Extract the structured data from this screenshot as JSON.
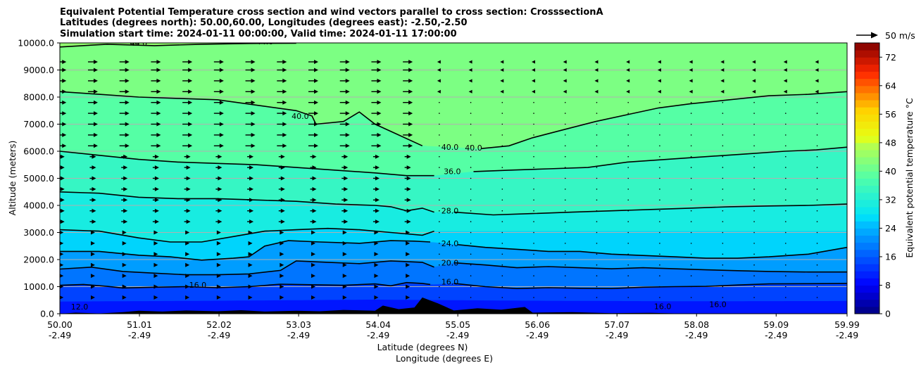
{
  "chart_data": {
    "type": "heatmap",
    "title_lines": [
      "Equivalent Potential Temperature cross section and wind vectors parallel to cross section: CrosssectionA",
      "Latitudes (degrees north): 50.00,60.00, Longitudes (degrees east): -2.50,-2.50",
      "Simulation start time: 2024-01-11 00:00:00, Valid time: 2024-01-11 17:00:00"
    ],
    "xlabel_1": "Latitude (degrees N)",
    "xlabel_2": "Longitude (degrees E)",
    "ylabel": "Altitude (meters)",
    "x_ticks_lat": [
      "50.00",
      "51.01",
      "52.02",
      "53.03",
      "54.04",
      "55.05",
      "56.06",
      "57.07",
      "58.08",
      "59.09",
      "59.99"
    ],
    "x_ticks_lon": [
      "-2.49",
      "-2.49",
      "-2.49",
      "-2.49",
      "-2.49",
      "-2.49",
      "-2.49",
      "-2.49",
      "-2.49",
      "-2.49",
      "-2.49"
    ],
    "x_range": [
      50.0,
      59.99
    ],
    "y_ticks": [
      "0.0",
      "1000.0",
      "2000.0",
      "3000.0",
      "4000.0",
      "5000.0",
      "6000.0",
      "7000.0",
      "8000.0",
      "9000.0",
      "10000.0"
    ],
    "y_range": [
      0,
      10000
    ],
    "grid": "horizontal",
    "colorbar": {
      "label": "Equivalent potential temperature $^\\circ$C",
      "label_display": "Equivalent potential temperature °C",
      "range": [
        0,
        76
      ],
      "ticks": [
        "0",
        "8",
        "16",
        "24",
        "32",
        "40",
        "48",
        "56",
        "64",
        "72"
      ]
    },
    "quiver_key": "50 m/s",
    "contour_labels": [
      {
        "text": "12.0",
        "lat": 50.25,
        "alt": 150
      },
      {
        "text": "16.0",
        "lat": 51.75,
        "alt": 960
      },
      {
        "text": "16.0",
        "lat": 54.95,
        "alt": 1080
      },
      {
        "text": "16.0",
        "lat": 57.65,
        "alt": 170
      },
      {
        "text": "16.0",
        "lat": 58.35,
        "alt": 250
      },
      {
        "text": "20.0",
        "lat": 54.95,
        "alt": 1780
      },
      {
        "text": "24.0",
        "lat": 54.95,
        "alt": 2500
      },
      {
        "text": "28.0",
        "lat": 54.95,
        "alt": 3700
      },
      {
        "text": "36.0",
        "lat": 54.98,
        "alt": 5150
      },
      {
        "text": "40.0",
        "lat": 54.95,
        "alt": 6050
      },
      {
        "text": "40.0",
        "lat": 55.25,
        "alt": 6030
      },
      {
        "text": "40.0",
        "lat": 53.05,
        "alt": 7200
      },
      {
        "text": "44.0",
        "lat": 51.0,
        "alt": 9900
      },
      {
        "text": "44.0",
        "lat": 52.6,
        "alt": 9950
      }
    ],
    "contour_levels": [
      12,
      16,
      20,
      24,
      28,
      32,
      36,
      40,
      44
    ],
    "contours": [
      {
        "level": 16,
        "points": [
          [
            50.0,
            1050
          ],
          [
            50.3,
            1080
          ],
          [
            50.6,
            1010
          ],
          [
            50.8,
            950
          ],
          [
            51.2,
            980
          ],
          [
            51.6,
            1000
          ],
          [
            52.0,
            960
          ],
          [
            52.4,
            1000
          ],
          [
            52.8,
            1090
          ],
          [
            53.2,
            1070
          ],
          [
            53.6,
            1050
          ],
          [
            54.0,
            1100
          ],
          [
            54.2,
            1030
          ],
          [
            54.4,
            1150
          ],
          [
            54.6,
            1120
          ],
          [
            54.7,
            1080
          ]
        ]
      },
      {
        "level": 16,
        "points": [
          [
            55.0,
            1120
          ],
          [
            55.4,
            1000
          ],
          [
            55.8,
            930
          ],
          [
            56.2,
            960
          ],
          [
            56.6,
            940
          ],
          [
            57.0,
            930
          ],
          [
            57.4,
            980
          ],
          [
            57.8,
            1000
          ],
          [
            58.2,
            1010
          ],
          [
            58.6,
            1060
          ],
          [
            59.0,
            1100
          ],
          [
            59.5,
            1110
          ],
          [
            59.99,
            1120
          ]
        ]
      },
      {
        "level": 20,
        "points": [
          [
            50.0,
            1650
          ],
          [
            50.4,
            1720
          ],
          [
            50.8,
            1560
          ],
          [
            51.2,
            1500
          ],
          [
            51.6,
            1440
          ],
          [
            52.0,
            1440
          ],
          [
            52.4,
            1470
          ],
          [
            52.8,
            1600
          ],
          [
            53.0,
            1950
          ],
          [
            53.4,
            1900
          ],
          [
            53.8,
            1850
          ],
          [
            54.2,
            1950
          ],
          [
            54.6,
            1900
          ],
          [
            54.75,
            1720
          ]
        ]
      },
      {
        "level": 20,
        "points": [
          [
            55.0,
            1880
          ],
          [
            55.4,
            1800
          ],
          [
            55.8,
            1700
          ],
          [
            56.2,
            1740
          ],
          [
            56.6,
            1700
          ],
          [
            57.0,
            1660
          ],
          [
            57.4,
            1700
          ],
          [
            57.8,
            1660
          ],
          [
            58.2,
            1620
          ],
          [
            58.6,
            1590
          ],
          [
            59.0,
            1560
          ],
          [
            59.5,
            1540
          ],
          [
            59.99,
            1540
          ]
        ]
      },
      {
        "level": 24,
        "points": [
          [
            50.0,
            2300
          ],
          [
            50.5,
            2300
          ],
          [
            51.0,
            2160
          ],
          [
            51.4,
            2100
          ],
          [
            51.8,
            1980
          ],
          [
            52.2,
            2050
          ],
          [
            52.4,
            2100
          ],
          [
            52.6,
            2500
          ],
          [
            52.9,
            2700
          ],
          [
            53.3,
            2650
          ],
          [
            53.8,
            2600
          ],
          [
            54.2,
            2700
          ],
          [
            54.5,
            2680
          ],
          [
            54.7,
            2650
          ]
        ]
      },
      {
        "level": 24,
        "points": [
          [
            55.05,
            2550
          ],
          [
            55.4,
            2450
          ],
          [
            55.8,
            2380
          ],
          [
            56.2,
            2300
          ],
          [
            56.6,
            2300
          ],
          [
            57.0,
            2200
          ],
          [
            57.4,
            2150
          ],
          [
            57.8,
            2100
          ],
          [
            58.2,
            2050
          ],
          [
            58.6,
            2050
          ],
          [
            59.0,
            2100
          ],
          [
            59.5,
            2200
          ],
          [
            59.99,
            2450
          ]
        ]
      },
      {
        "level": 28,
        "points": [
          [
            50.0,
            3100
          ],
          [
            50.5,
            3050
          ],
          [
            51.0,
            2800
          ],
          [
            51.4,
            2650
          ],
          [
            51.8,
            2650
          ],
          [
            52.2,
            2850
          ],
          [
            52.6,
            3050
          ],
          [
            53.0,
            3100
          ],
          [
            53.4,
            3150
          ],
          [
            53.8,
            3100
          ],
          [
            54.2,
            3000
          ],
          [
            54.6,
            2900
          ],
          [
            54.75,
            3050
          ]
        ]
      },
      {
        "level": 32,
        "points": [
          [
            50.0,
            4500
          ],
          [
            50.5,
            4450
          ],
          [
            51.0,
            4300
          ],
          [
            51.5,
            4250
          ],
          [
            52.0,
            4250
          ],
          [
            52.5,
            4200
          ],
          [
            53.0,
            4150
          ],
          [
            53.5,
            4050
          ],
          [
            54.0,
            4000
          ],
          [
            54.2,
            3950
          ],
          [
            54.4,
            3800
          ],
          [
            54.6,
            3900
          ],
          [
            54.75,
            3750
          ]
        ]
      },
      {
        "level": 32,
        "points": [
          [
            55.0,
            3750
          ],
          [
            55.5,
            3650
          ],
          [
            56.0,
            3700
          ],
          [
            56.5,
            3750
          ],
          [
            57.0,
            3800
          ],
          [
            57.5,
            3850
          ],
          [
            58.0,
            3900
          ],
          [
            58.5,
            3950
          ],
          [
            59.0,
            3980
          ],
          [
            59.5,
            4000
          ],
          [
            59.99,
            4050
          ]
        ]
      },
      {
        "level": 36,
        "points": [
          [
            50.0,
            6000
          ],
          [
            50.5,
            5850
          ],
          [
            51.0,
            5700
          ],
          [
            51.5,
            5600
          ],
          [
            52.0,
            5550
          ],
          [
            52.5,
            5500
          ],
          [
            53.0,
            5400
          ],
          [
            53.5,
            5300
          ],
          [
            54.0,
            5200
          ],
          [
            54.4,
            5100
          ],
          [
            54.75,
            5100
          ]
        ]
      },
      {
        "level": 36,
        "points": [
          [
            55.25,
            5250
          ],
          [
            55.7,
            5300
          ],
          [
            56.2,
            5350
          ],
          [
            56.7,
            5400
          ],
          [
            57.2,
            5600
          ],
          [
            57.7,
            5700
          ],
          [
            58.2,
            5800
          ],
          [
            58.7,
            5900
          ],
          [
            59.2,
            6000
          ],
          [
            59.6,
            6050
          ],
          [
            59.99,
            6150
          ]
        ]
      },
      {
        "level": 40,
        "points": [
          [
            53.25,
            7000
          ],
          [
            53.6,
            7100
          ],
          [
            53.8,
            7450
          ],
          [
            54.0,
            7000
          ],
          [
            54.3,
            6600
          ],
          [
            54.6,
            6200
          ]
        ]
      },
      {
        "level": 40,
        "points": [
          [
            55.35,
            6100
          ],
          [
            55.7,
            6200
          ],
          [
            56.0,
            6500
          ],
          [
            56.4,
            6800
          ],
          [
            56.8,
            7100
          ],
          [
            57.2,
            7350
          ],
          [
            57.6,
            7600
          ],
          [
            58.0,
            7750
          ],
          [
            58.5,
            7900
          ],
          [
            59.0,
            8050
          ],
          [
            59.5,
            8100
          ],
          [
            59.99,
            8200
          ]
        ]
      },
      {
        "level": 40,
        "points": [
          [
            50.0,
            8200
          ],
          [
            50.5,
            8100
          ],
          [
            51.0,
            8000
          ],
          [
            51.5,
            7950
          ],
          [
            52.0,
            7900
          ],
          [
            52.5,
            7700
          ],
          [
            53.0,
            7500
          ],
          [
            53.2,
            7300
          ],
          [
            53.25,
            7000
          ]
        ]
      },
      {
        "level": 44,
        "points": [
          [
            50.0,
            9850
          ],
          [
            50.6,
            9950
          ],
          [
            51.2,
            9900
          ],
          [
            51.8,
            9950
          ],
          [
            52.4,
            9980
          ],
          [
            53.0,
            9990
          ]
        ]
      }
    ],
    "wind_rows_alt": [
      9300,
      9000,
      8600,
      8200,
      7800,
      7400,
      7000,
      6600,
      6200,
      5800,
      5400,
      5000,
      4600,
      4200,
      3800,
      3400,
      3000,
      2600,
      2200,
      1800,
      1400,
      1000,
      600
    ],
    "wind_col_count": 25,
    "ground_profile": [
      [
        50.0,
        0
      ],
      [
        50.2,
        40
      ],
      [
        50.5,
        10
      ],
      [
        50.8,
        60
      ],
      [
        51.0,
        110
      ],
      [
        51.3,
        80
      ],
      [
        51.6,
        120
      ],
      [
        52.0,
        90
      ],
      [
        52.3,
        130
      ],
      [
        52.6,
        80
      ],
      [
        53.0,
        110
      ],
      [
        53.3,
        90
      ],
      [
        53.6,
        140
      ],
      [
        54.0,
        110
      ],
      [
        54.1,
        300
      ],
      [
        54.3,
        170
      ],
      [
        54.5,
        230
      ],
      [
        54.6,
        600
      ],
      [
        54.8,
        380
      ],
      [
        55.0,
        120
      ],
      [
        55.3,
        200
      ],
      [
        55.6,
        150
      ],
      [
        55.9,
        250
      ],
      [
        56.0,
        40
      ],
      [
        56.5,
        60
      ],
      [
        57.0,
        20
      ],
      [
        57.5,
        30
      ],
      [
        58.0,
        0
      ],
      [
        59.99,
        0
      ]
    ]
  }
}
